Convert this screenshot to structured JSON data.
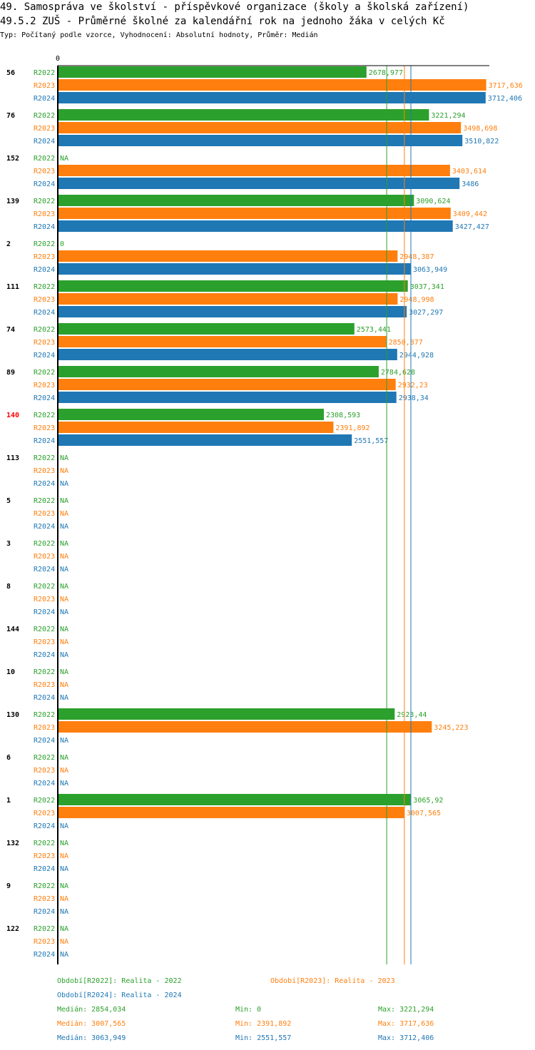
{
  "header": {
    "title_line1": "49. Samospráva ve školství - příspěvkové organizace (školy a školská zařízení)",
    "title_line2": "49.5.2 ZUŠ - Průměrné školné za kalendářní rok na jednoho žáka v celých Kč",
    "subtitle": "Typ: Počítaný podle vzorce, Vyhodnocení: Absolutní hodnoty, Průměr: Medián"
  },
  "colors": {
    "R2022": "#2ca02c",
    "R2023": "#ff7f0e",
    "R2024": "#1f77b4",
    "highlight": "#ff0000",
    "axis": "#000000"
  },
  "chart_data": {
    "type": "bar",
    "orientation": "horizontal",
    "axis_zero_label": "0",
    "xlim": [
      0,
      3717.636
    ],
    "highlight_group": "140",
    "series_names": [
      "R2022",
      "R2023",
      "R2024"
    ],
    "groups": [
      {
        "id": "56",
        "values": [
          "2678,977",
          "3717,636",
          "3712,406"
        ]
      },
      {
        "id": "76",
        "values": [
          "3221,294",
          "3498,698",
          "3510,822"
        ]
      },
      {
        "id": "152",
        "values": [
          "NA",
          "3403,614",
          "3486"
        ]
      },
      {
        "id": "139",
        "values": [
          "3090,624",
          "3409,442",
          "3427,427"
        ]
      },
      {
        "id": "2",
        "values": [
          "0",
          "2948,387",
          "3063,949"
        ]
      },
      {
        "id": "111",
        "values": [
          "3037,341",
          "2948,998",
          "3027,297"
        ]
      },
      {
        "id": "74",
        "values": [
          "2573,441",
          "2850,877",
          "2944,928"
        ]
      },
      {
        "id": "89",
        "values": [
          "2784,628",
          "2932,23",
          "2938,34"
        ]
      },
      {
        "id": "140",
        "values": [
          "2308,593",
          "2391,892",
          "2551,557"
        ]
      },
      {
        "id": "113",
        "values": [
          "NA",
          "NA",
          "NA"
        ]
      },
      {
        "id": "5",
        "values": [
          "NA",
          "NA",
          "NA"
        ]
      },
      {
        "id": "3",
        "values": [
          "NA",
          "NA",
          "NA"
        ]
      },
      {
        "id": "8",
        "values": [
          "NA",
          "NA",
          "NA"
        ]
      },
      {
        "id": "144",
        "values": [
          "NA",
          "NA",
          "NA"
        ]
      },
      {
        "id": "10",
        "values": [
          "NA",
          "NA",
          "NA"
        ]
      },
      {
        "id": "130",
        "values": [
          "2923,44",
          "3245,223",
          "NA"
        ]
      },
      {
        "id": "6",
        "values": [
          "NA",
          "NA",
          "NA"
        ]
      },
      {
        "id": "1",
        "values": [
          "3065,92",
          "3007,565",
          "NA"
        ]
      },
      {
        "id": "132",
        "values": [
          "NA",
          "NA",
          "NA"
        ]
      },
      {
        "id": "9",
        "values": [
          "NA",
          "NA",
          "NA"
        ]
      },
      {
        "id": "122",
        "values": [
          "NA",
          "NA",
          "NA"
        ]
      }
    ],
    "median_lines": {
      "R2022": 2854.034,
      "R2023": 3007.565,
      "R2024": 3063.949
    }
  },
  "legend": {
    "periods": [
      "Období[R2022]: Realita - 2022",
      "Období[R2023]: Realita - 2023",
      "Období[R2024]: Realita - 2024"
    ],
    "stats": [
      {
        "median": "Medián: 2854,034",
        "min": "Min: 0",
        "max": "Max: 3221,294"
      },
      {
        "median": "Medián: 3007,565",
        "min": "Min: 2391,892",
        "max": "Max: 3717,636"
      },
      {
        "median": "Medián: 3063,949",
        "min": "Min: 2551,557",
        "max": "Max: 3712,406"
      }
    ]
  }
}
